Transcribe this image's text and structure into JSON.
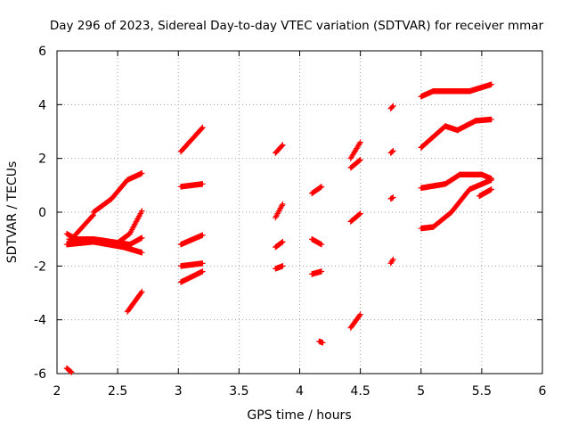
{
  "chart_data": {
    "type": "scatter",
    "title": "Day 296 of 2023, Sidereal Day-to-day VTEC variation (SDTVAR) for receiver mmar",
    "xlabel": "GPS time / hours",
    "ylabel": "SDTVAR / TECUs",
    "xlim": [
      2,
      6
    ],
    "ylim": [
      -6,
      6
    ],
    "xticks": [
      "2",
      "2.5",
      "3",
      "3.5",
      "4",
      "4.5",
      "5",
      "5.5",
      "6"
    ],
    "yticks": [
      "-6",
      "-4",
      "-2",
      "0",
      "2",
      "4",
      "6"
    ],
    "grid": true,
    "marker": "plus",
    "color": "#ff0000",
    "segments": [
      {
        "x": [
          2.08,
          2.2
        ],
        "y": [
          -0.8,
          -1.1
        ]
      },
      {
        "x": [
          2.1,
          2.3
        ],
        "y": [
          -1.1,
          -0.1
        ]
      },
      {
        "x": [
          2.3,
          2.45
        ],
        "y": [
          0.0,
          0.5
        ]
      },
      {
        "x": [
          2.45,
          2.58
        ],
        "y": [
          0.5,
          1.2
        ]
      },
      {
        "x": [
          2.58,
          2.7
        ],
        "y": [
          1.2,
          1.45
        ]
      },
      {
        "x": [
          2.08,
          2.3
        ],
        "y": [
          -1.2,
          -1.1
        ]
      },
      {
        "x": [
          2.3,
          2.55
        ],
        "y": [
          -1.1,
          -1.3
        ]
      },
      {
        "x": [
          2.55,
          2.7
        ],
        "y": [
          -1.3,
          -1.5
        ]
      },
      {
        "x": [
          2.1,
          2.3
        ],
        "y": [
          -1.0,
          -1.0
        ]
      },
      {
        "x": [
          2.3,
          2.6
        ],
        "y": [
          -1.0,
          -1.2
        ]
      },
      {
        "x": [
          2.6,
          2.7
        ],
        "y": [
          -1.2,
          -0.95
        ]
      },
      {
        "x": [
          2.48,
          2.6
        ],
        "y": [
          -1.2,
          -0.8
        ]
      },
      {
        "x": [
          2.6,
          2.7
        ],
        "y": [
          -0.8,
          0.05
        ]
      },
      {
        "x": [
          2.58,
          2.7
        ],
        "y": [
          -3.7,
          -2.95
        ]
      },
      {
        "x": [
          2.08,
          2.12
        ],
        "y": [
          -5.8,
          -5.95
        ]
      },
      {
        "x": [
          3.02,
          3.2
        ],
        "y": [
          2.25,
          3.15
        ]
      },
      {
        "x": [
          3.02,
          3.2
        ],
        "y": [
          0.95,
          1.05
        ]
      },
      {
        "x": [
          3.02,
          3.2
        ],
        "y": [
          -1.2,
          -0.85
        ]
      },
      {
        "x": [
          3.02,
          3.2
        ],
        "y": [
          -2.0,
          -1.9
        ]
      },
      {
        "x": [
          3.02,
          3.2
        ],
        "y": [
          -2.6,
          -2.2
        ]
      },
      {
        "x": [
          3.8,
          3.86
        ],
        "y": [
          2.2,
          2.5
        ]
      },
      {
        "x": [
          3.8,
          3.86
        ],
        "y": [
          -0.2,
          0.3
        ]
      },
      {
        "x": [
          3.8,
          3.86
        ],
        "y": [
          -1.3,
          -1.1
        ]
      },
      {
        "x": [
          3.8,
          3.86
        ],
        "y": [
          -2.1,
          -2.0
        ]
      },
      {
        "x": [
          4.1,
          4.18
        ],
        "y": [
          0.7,
          0.95
        ]
      },
      {
        "x": [
          4.1,
          4.18
        ],
        "y": [
          -1.0,
          -1.2
        ]
      },
      {
        "x": [
          4.1,
          4.18
        ],
        "y": [
          -2.3,
          -2.2
        ]
      },
      {
        "x": [
          4.16,
          4.19
        ],
        "y": [
          -4.8,
          -4.85
        ]
      },
      {
        "x": [
          4.42,
          4.5
        ],
        "y": [
          2.0,
          2.6
        ]
      },
      {
        "x": [
          4.42,
          4.5
        ],
        "y": [
          1.65,
          1.95
        ]
      },
      {
        "x": [
          4.42,
          4.5
        ],
        "y": [
          -0.35,
          -0.05
        ]
      },
      {
        "x": [
          4.42,
          4.5
        ],
        "y": [
          -4.3,
          -3.8
        ]
      },
      {
        "x": [
          4.75,
          4.77
        ],
        "y": [
          3.85,
          3.95
        ]
      },
      {
        "x": [
          4.75,
          4.77
        ],
        "y": [
          2.2,
          2.28
        ]
      },
      {
        "x": [
          4.75,
          4.77
        ],
        "y": [
          0.5,
          0.55
        ]
      },
      {
        "x": [
          4.75,
          4.77
        ],
        "y": [
          -1.9,
          -1.75
        ]
      },
      {
        "x": [
          5.0,
          5.1
        ],
        "y": [
          4.3,
          4.5
        ]
      },
      {
        "x": [
          5.1,
          5.4
        ],
        "y": [
          4.5,
          4.5
        ]
      },
      {
        "x": [
          5.4,
          5.58
        ],
        "y": [
          4.5,
          4.75
        ]
      },
      {
        "x": [
          5.0,
          5.2
        ],
        "y": [
          2.4,
          3.2
        ]
      },
      {
        "x": [
          5.2,
          5.3
        ],
        "y": [
          3.2,
          3.05
        ]
      },
      {
        "x": [
          5.3,
          5.45
        ],
        "y": [
          3.05,
          3.4
        ]
      },
      {
        "x": [
          5.45,
          5.58
        ],
        "y": [
          3.4,
          3.45
        ]
      },
      {
        "x": [
          5.0,
          5.2
        ],
        "y": [
          0.9,
          1.05
        ]
      },
      {
        "x": [
          5.2,
          5.32
        ],
        "y": [
          1.05,
          1.4
        ]
      },
      {
        "x": [
          5.32,
          5.5
        ],
        "y": [
          1.4,
          1.4
        ]
      },
      {
        "x": [
          5.5,
          5.58
        ],
        "y": [
          1.4,
          1.25
        ]
      },
      {
        "x": [
          5.0,
          5.1
        ],
        "y": [
          -0.6,
          -0.55
        ]
      },
      {
        "x": [
          5.1,
          5.25
        ],
        "y": [
          -0.55,
          0.0
        ]
      },
      {
        "x": [
          5.25,
          5.4
        ],
        "y": [
          0.0,
          0.85
        ]
      },
      {
        "x": [
          5.4,
          5.58
        ],
        "y": [
          0.85,
          1.2
        ]
      },
      {
        "x": [
          5.48,
          5.58
        ],
        "y": [
          0.6,
          0.85
        ]
      }
    ]
  }
}
